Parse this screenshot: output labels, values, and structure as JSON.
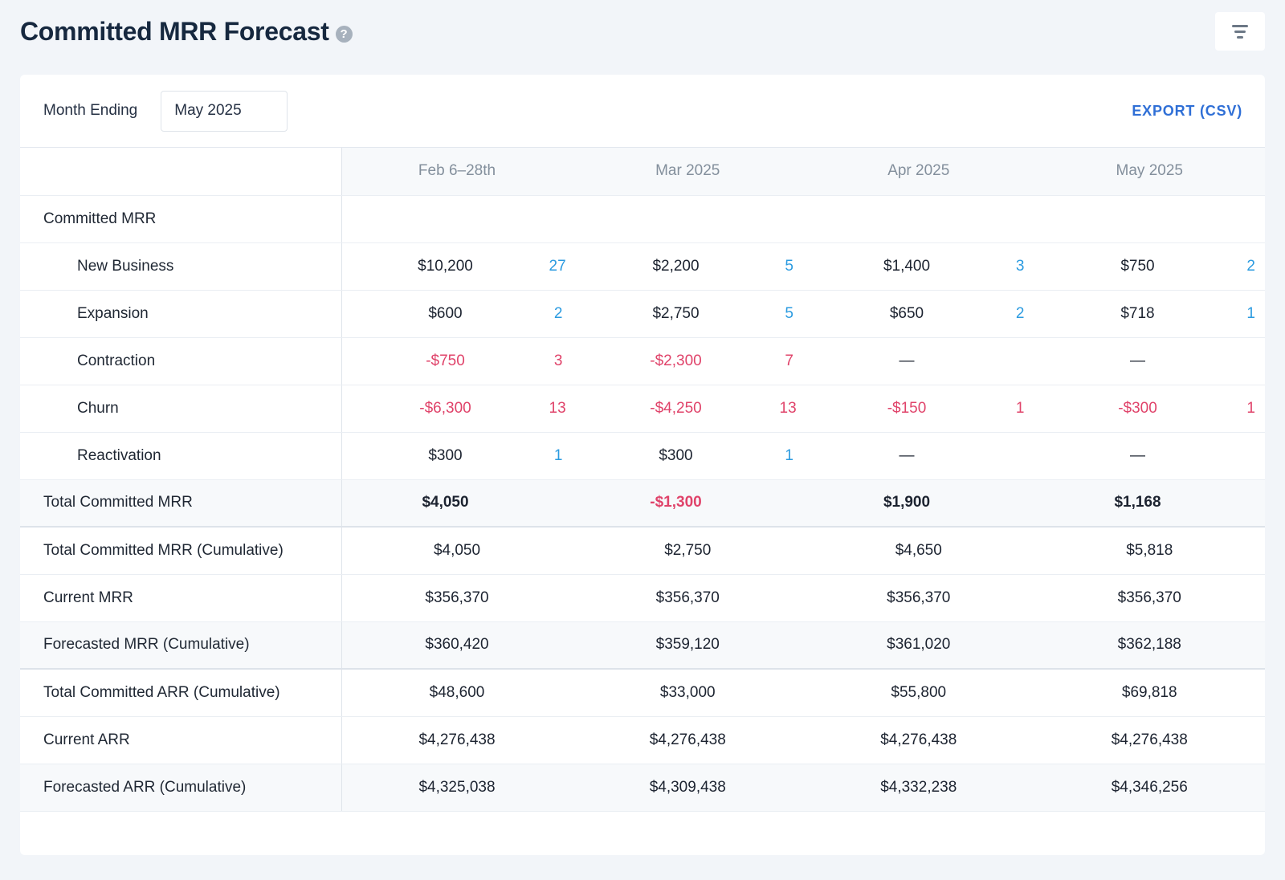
{
  "header": {
    "title": "Committed MRR Forecast",
    "help_glyph": "?"
  },
  "toolbar": {
    "month_label": "Month Ending",
    "month_value": "May 2025",
    "export_label": "EXPORT (CSV)"
  },
  "columns": [
    "Feb 6–28th",
    "Mar 2025",
    "Apr 2025",
    "May 2025"
  ],
  "section_label": "Committed MRR",
  "detail_rows": [
    {
      "label": "New Business",
      "cells": [
        {
          "amount": "$10,200",
          "count": "27",
          "negative": false
        },
        {
          "amount": "$2,200",
          "count": "5",
          "negative": false
        },
        {
          "amount": "$1,400",
          "count": "3",
          "negative": false
        },
        {
          "amount": "$750",
          "count": "2",
          "negative": false
        }
      ]
    },
    {
      "label": "Expansion",
      "cells": [
        {
          "amount": "$600",
          "count": "2",
          "negative": false
        },
        {
          "amount": "$2,750",
          "count": "5",
          "negative": false
        },
        {
          "amount": "$650",
          "count": "2",
          "negative": false
        },
        {
          "amount": "$718",
          "count": "1",
          "negative": false
        }
      ]
    },
    {
      "label": "Contraction",
      "cells": [
        {
          "amount": "-$750",
          "count": "3",
          "negative": true
        },
        {
          "amount": "-$2,300",
          "count": "7",
          "negative": true
        },
        {
          "amount": "—",
          "count": "",
          "negative": false
        },
        {
          "amount": "—",
          "count": "",
          "negative": false
        }
      ]
    },
    {
      "label": "Churn",
      "cells": [
        {
          "amount": "-$6,300",
          "count": "13",
          "negative": true
        },
        {
          "amount": "-$4,250",
          "count": "13",
          "negative": true
        },
        {
          "amount": "-$150",
          "count": "1",
          "negative": true
        },
        {
          "amount": "-$300",
          "count": "1",
          "negative": true
        }
      ]
    },
    {
      "label": "Reactivation",
      "cells": [
        {
          "amount": "$300",
          "count": "1",
          "negative": false
        },
        {
          "amount": "$300",
          "count": "1",
          "negative": false
        },
        {
          "amount": "—",
          "count": "",
          "negative": false
        },
        {
          "amount": "—",
          "count": "",
          "negative": false
        }
      ]
    }
  ],
  "total_row": {
    "label": "Total Committed MRR",
    "cells": [
      {
        "amount": "$4,050",
        "negative": false
      },
      {
        "amount": "-$1,300",
        "negative": true
      },
      {
        "amount": "$1,900",
        "negative": false
      },
      {
        "amount": "$1,168",
        "negative": false
      }
    ]
  },
  "summary_rows": [
    {
      "label": "Total Committed MRR (Cumulative)",
      "bold": false,
      "shaded": false,
      "values": [
        "$4,050",
        "$2,750",
        "$4,650",
        "$5,818"
      ]
    },
    {
      "label": "Current MRR",
      "bold": false,
      "shaded": false,
      "values": [
        "$356,370",
        "$356,370",
        "$356,370",
        "$356,370"
      ]
    },
    {
      "label": "Forecasted MRR (Cumulative)",
      "bold": true,
      "shaded": true,
      "values": [
        "$360,420",
        "$359,120",
        "$361,020",
        "$362,188"
      ]
    },
    {
      "label": "Total Committed ARR (Cumulative)",
      "bold": false,
      "shaded": false,
      "values": [
        "$48,600",
        "$33,000",
        "$55,800",
        "$69,818"
      ]
    },
    {
      "label": "Current ARR",
      "bold": false,
      "shaded": false,
      "values": [
        "$4,276,438",
        "$4,276,438",
        "$4,276,438",
        "$4,276,438"
      ]
    },
    {
      "label": "Forecasted ARR (Cumulative)",
      "bold": true,
      "shaded": true,
      "values": [
        "$4,325,038",
        "$4,309,438",
        "$4,332,238",
        "$4,346,256"
      ]
    }
  ],
  "colors": {
    "negative": "#e0436a",
    "count": "#2b9be0",
    "accent": "#2f6fd6"
  },
  "icons": {
    "help": "question-circle-icon",
    "filter": "filter-lines-icon"
  }
}
